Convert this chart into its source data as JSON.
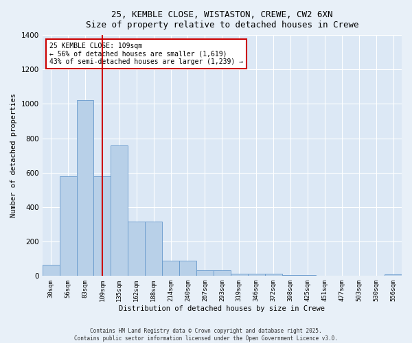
{
  "title_line1": "25, KEMBLE CLOSE, WISTASTON, CREWE, CW2 6XN",
  "title_line2": "Size of property relative to detached houses in Crewe",
  "xlabel": "Distribution of detached houses by size in Crewe",
  "ylabel": "Number of detached properties",
  "categories": [
    "30sqm",
    "56sqm",
    "83sqm",
    "109sqm",
    "135sqm",
    "162sqm",
    "188sqm",
    "214sqm",
    "240sqm",
    "267sqm",
    "293sqm",
    "319sqm",
    "346sqm",
    "372sqm",
    "398sqm",
    "425sqm",
    "451sqm",
    "477sqm",
    "503sqm",
    "530sqm",
    "556sqm"
  ],
  "values": [
    65,
    580,
    1020,
    580,
    760,
    315,
    315,
    90,
    90,
    35,
    35,
    15,
    15,
    12,
    5,
    5,
    2,
    1,
    1,
    1,
    10
  ],
  "bar_color": "#b8d0e8",
  "bar_edgecolor": "#6699cc",
  "vline_x_idx": 3,
  "vline_color": "#cc0000",
  "annotation_line1": "25 KEMBLE CLOSE: 109sqm",
  "annotation_line2": "← 56% of detached houses are smaller (1,619)",
  "annotation_line3": "43% of semi-detached houses are larger (1,239) →",
  "annotation_box_facecolor": "#ffffff",
  "annotation_box_edgecolor": "#cc0000",
  "ylim": [
    0,
    1400
  ],
  "yticks": [
    0,
    200,
    400,
    600,
    800,
    1000,
    1200,
    1400
  ],
  "plot_bg_color": "#dce8f5",
  "fig_bg_color": "#e8f0f8",
  "grid_color": "#ffffff",
  "footer_line1": "Contains HM Land Registry data © Crown copyright and database right 2025.",
  "footer_line2": "Contains public sector information licensed under the Open Government Licence v3.0."
}
